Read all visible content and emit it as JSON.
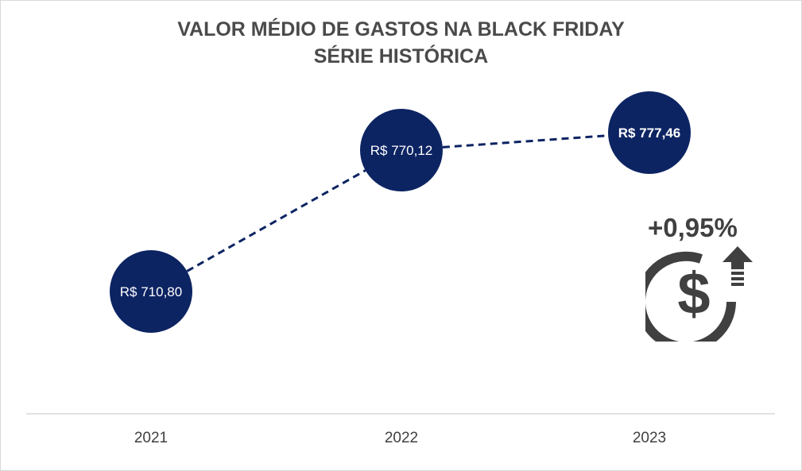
{
  "chart_data": {
    "type": "line",
    "title": "VALOR MÉDIO DE GASTOS NA BLACK FRIDAY",
    "subtitle": "SÉRIE HISTÓRICA",
    "categories": [
      "2021",
      "2022",
      "2023"
    ],
    "values": [
      710.8,
      770.12,
      777.46
    ],
    "data_labels": [
      "R$ 710,80",
      "R$ 770,12",
      "R$ 777,46"
    ],
    "line_style": "dashed",
    "marker": "large-circle",
    "grid": false,
    "legend": "none",
    "colors": {
      "series": "#0d2463",
      "axis": "#d9d9d9",
      "text": "#404040"
    }
  },
  "annotation": {
    "change_label": "+0,95%",
    "icon": "dollar-growth-icon"
  }
}
